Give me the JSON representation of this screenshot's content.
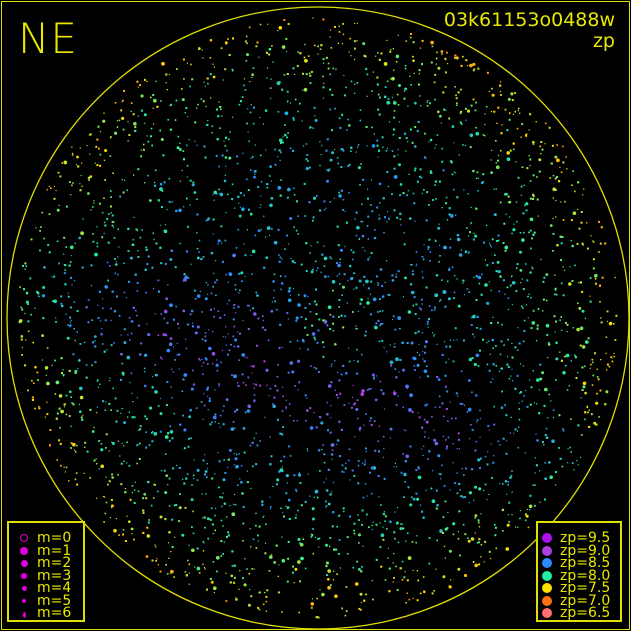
{
  "header": {
    "title": "NE",
    "frame_id": "03k61153o0488w",
    "quantity": "zp"
  },
  "chart_data": {
    "type": "scatter",
    "title": "NE",
    "subtitle": "03k61153o0488w zp",
    "description_of_marks": "star positions, color = zp, size = magnitude m",
    "size_legend": [
      {
        "label": "m=0",
        "m": 0,
        "style": "open"
      },
      {
        "label": "m=1",
        "m": 1
      },
      {
        "label": "m=2",
        "m": 2
      },
      {
        "label": "m=3",
        "m": 3
      },
      {
        "label": "m=4",
        "m": 4
      },
      {
        "label": "m=5",
        "m": 5
      },
      {
        "label": "m=6",
        "m": 6
      }
    ],
    "color_legend": [
      {
        "label": "zp=9.5",
        "zp": 9.5,
        "color": "#b010f0"
      },
      {
        "label": "zp=9.0",
        "zp": 9.0,
        "color": "#b040e0"
      },
      {
        "label": "zp=8.5",
        "zp": 8.5,
        "color": "#2a8cff"
      },
      {
        "label": "zp=8.0",
        "zp": 8.0,
        "color": "#20f0a0"
      },
      {
        "label": "zp=7.5",
        "zp": 7.5,
        "color": "#ffe000"
      },
      {
        "label": "zp=7.0",
        "zp": 7.0,
        "color": "#ff7010"
      },
      {
        "label": "zp=6.5",
        "zp": 6.5,
        "color": "#ff7070"
      }
    ],
    "grid": false,
    "horizon_circle": true,
    "colors": {
      "frame": "#e0e000",
      "background": "#000000",
      "legend_symbol": "#e000e0"
    }
  }
}
